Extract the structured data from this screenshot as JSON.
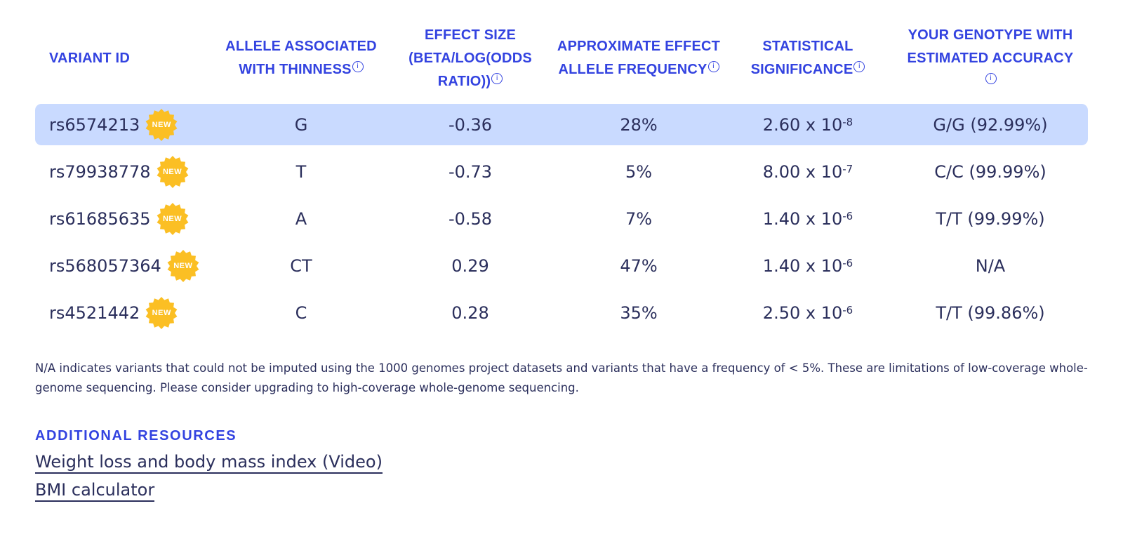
{
  "table": {
    "headers": [
      {
        "lines": [
          "VARIANT ID"
        ],
        "info": false
      },
      {
        "lines": [
          "ALLELE ASSOCIATED",
          "WITH THINNESS"
        ],
        "info": true
      },
      {
        "lines": [
          "EFFECT SIZE",
          "(BETA/LOG(ODDS",
          "RATIO))"
        ],
        "info": true
      },
      {
        "lines": [
          "APPROXIMATE EFFECT",
          "ALLELE FREQUENCY"
        ],
        "info": true
      },
      {
        "lines": [
          "STATISTICAL",
          "SIGNIFICANCE"
        ],
        "info": true
      },
      {
        "lines": [
          "YOUR GENOTYPE WITH",
          "ESTIMATED ACCURACY"
        ],
        "info": true,
        "info_own_line": true
      }
    ],
    "badge_label": "NEW",
    "rows": [
      {
        "variant": "rs6574213",
        "allele": "G",
        "effect": "-0.36",
        "frequency": "28%",
        "sig_base": "2.60 x 10",
        "sig_exp": "-8",
        "genotype": "G/G (92.99%)",
        "highlighted": true
      },
      {
        "variant": "rs79938778",
        "allele": "T",
        "effect": "-0.73",
        "frequency": "5%",
        "sig_base": "8.00 x 10",
        "sig_exp": "-7",
        "genotype": "C/C (99.99%)",
        "highlighted": false
      },
      {
        "variant": "rs61685635",
        "allele": "A",
        "effect": "-0.58",
        "frequency": "7%",
        "sig_base": "1.40 x 10",
        "sig_exp": "-6",
        "genotype": "T/T (99.99%)",
        "highlighted": false
      },
      {
        "variant": "rs568057364",
        "allele": "CT",
        "effect": "0.29",
        "frequency": "47%",
        "sig_base": "1.40 x 10",
        "sig_exp": "-6",
        "genotype": "N/A",
        "highlighted": false
      },
      {
        "variant": "rs4521442",
        "allele": "C",
        "effect": "0.28",
        "frequency": "35%",
        "sig_base": "2.50 x 10",
        "sig_exp": "-6",
        "genotype": "T/T (99.86%)",
        "highlighted": false
      }
    ]
  },
  "note": "N/A indicates variants that could not be imputed using the 1000 genomes project datasets and variants that have a frequency of < 5%. These are limitations of low-coverage whole-genome sequencing. Please consider upgrading to high-coverage whole-genome sequencing.",
  "resources": {
    "title": "ADDITIONAL RESOURCES",
    "links": [
      "Weight loss and body mass index (Video)",
      "BMI calculator"
    ]
  },
  "colors": {
    "accent": "#3343e0",
    "highlight": "#c9daff",
    "badge": "#fbbf24",
    "text": "#2b2f5c"
  }
}
